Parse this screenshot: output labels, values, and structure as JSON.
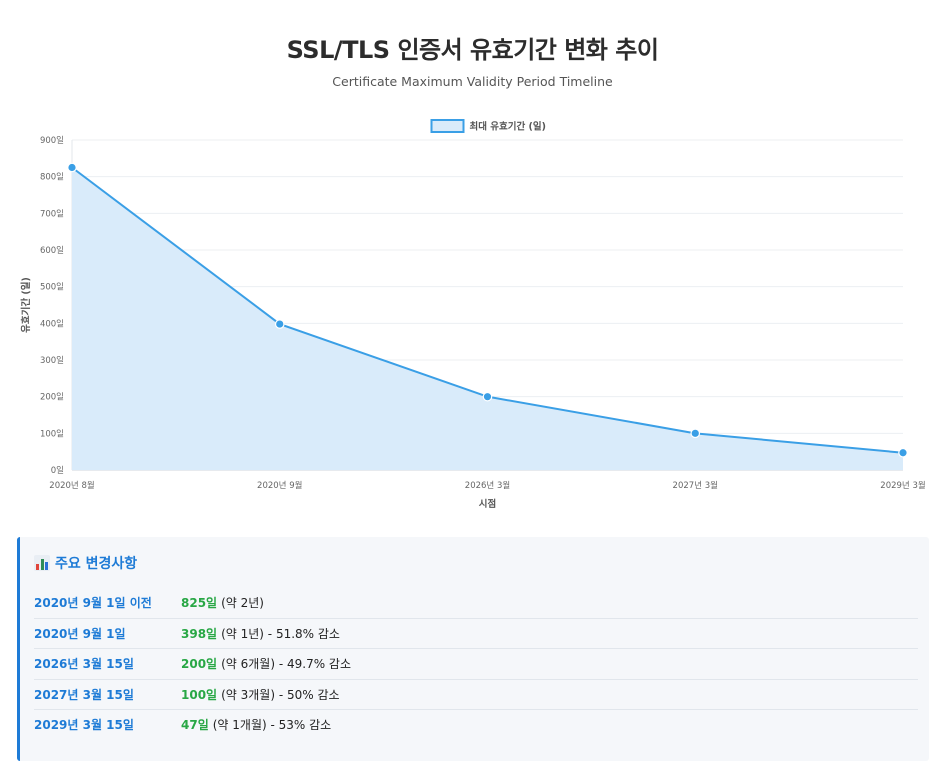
{
  "page": {
    "title": "SSL/TLS 인증서 유효기간 변화 추이",
    "subtitle": "Certificate Maximum Validity Period Timeline"
  },
  "chart_data": {
    "type": "area",
    "title": "SSL/TLS 인증서 유효기간 변화 추이",
    "categories": [
      "2020년 8월",
      "2020년 9월",
      "2026년 3월",
      "2027년 3월",
      "2029년 3월"
    ],
    "series": [
      {
        "name": "최대 유효기간 (일)",
        "values": [
          825,
          398,
          200,
          100,
          47
        ]
      }
    ],
    "xlabel": "시점",
    "ylabel": "유효기간 (일)",
    "ylim": [
      0,
      900
    ],
    "yticks": [
      0,
      100,
      200,
      300,
      400,
      500,
      600,
      700,
      800,
      900
    ],
    "ytick_suffix": "일",
    "legend_position": "top-center",
    "grid": true,
    "colors": {
      "line": "#3a9fe6",
      "fill": "#d9ebfa",
      "point": "#3a9fe6"
    }
  },
  "changes": {
    "title": "주요 변경사항",
    "icon": "bar-chart-icon",
    "items": [
      {
        "date": "2020년 9월 1일 이전",
        "value": "825일",
        "note": "(약 2년)"
      },
      {
        "date": "2020년 9월 1일",
        "value": "398일",
        "note": "(약 1년) - 51.8% 감소"
      },
      {
        "date": "2026년 3월 15일",
        "value": "200일",
        "note": "(약 6개월) - 49.7% 감소"
      },
      {
        "date": "2027년 3월 15일",
        "value": "100일",
        "note": "(약 3개월) - 50% 감소"
      },
      {
        "date": "2029년 3월 15일",
        "value": "47일",
        "note": "(약 1개월) - 53% 감소"
      }
    ]
  }
}
